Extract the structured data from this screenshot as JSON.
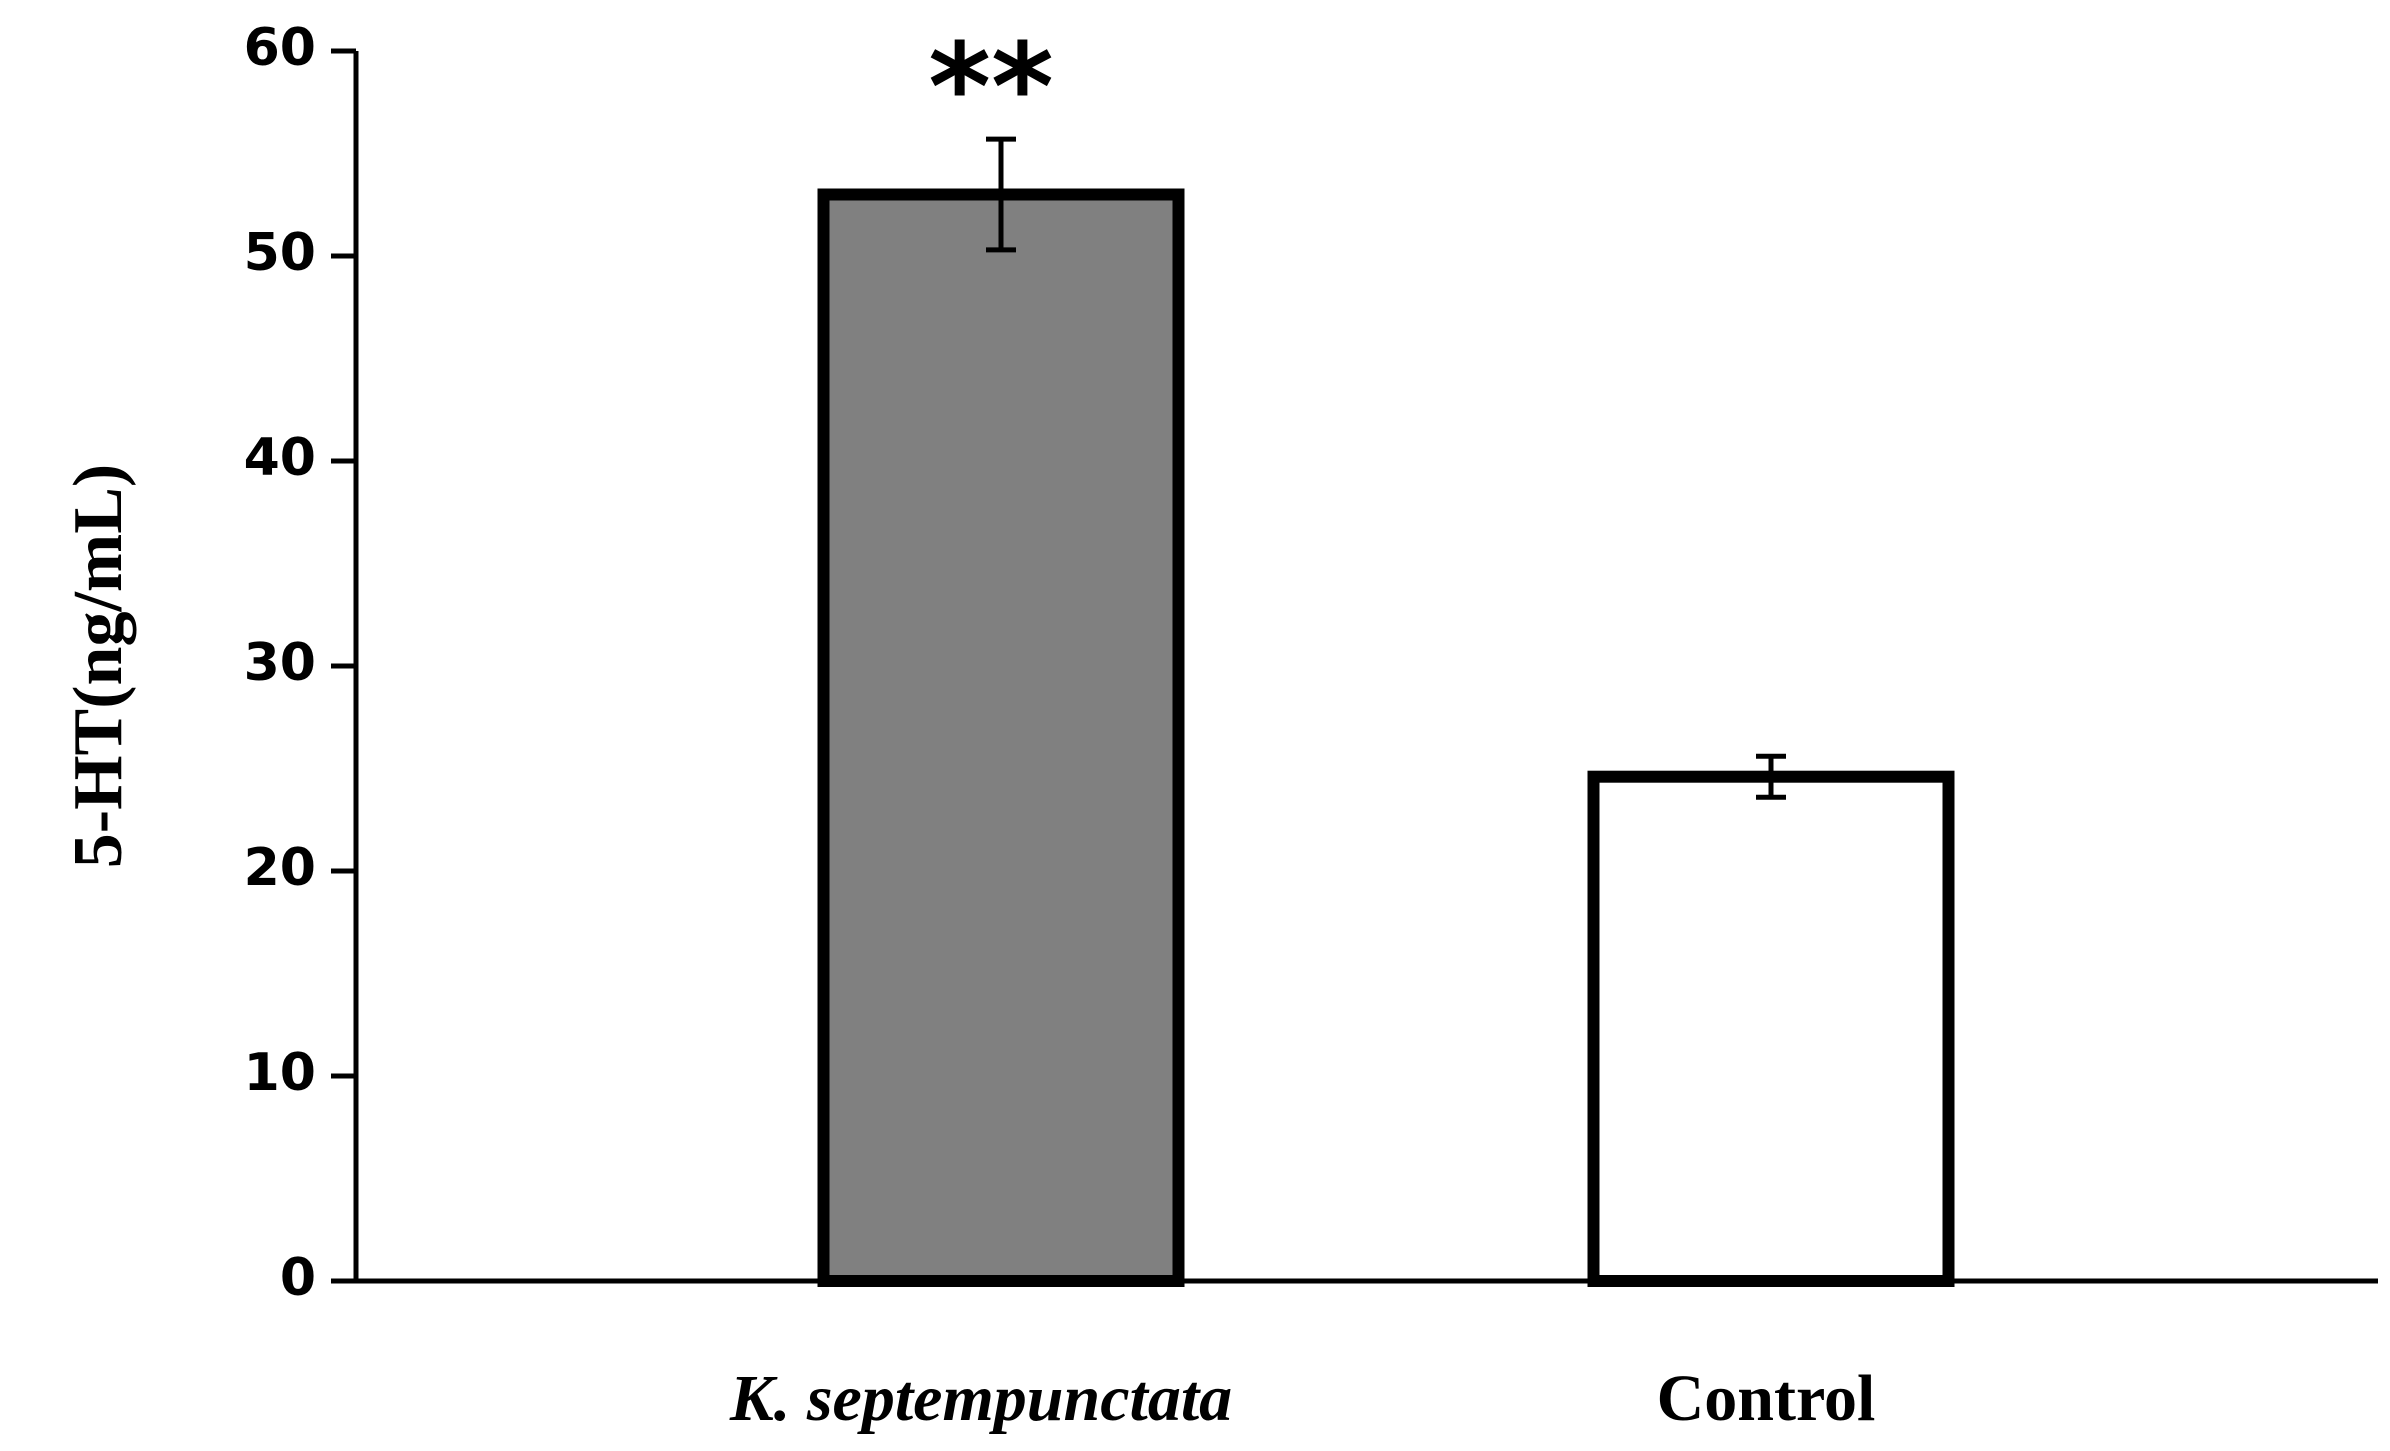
{
  "chart_data": {
    "type": "bar",
    "y_label": "5-HT(ng/mL)",
    "categories": [
      "K. septempunctata",
      "Control"
    ],
    "values": [
      53,
      24.6
    ],
    "errors": [
      2.7,
      1.0
    ],
    "colors": [
      "#808080",
      "#ffffff"
    ],
    "significance": [
      "**",
      null
    ],
    "ylim": [
      0,
      60
    ],
    "yticks": [
      0,
      10,
      20,
      30,
      40,
      50,
      60
    ],
    "grid": false
  }
}
